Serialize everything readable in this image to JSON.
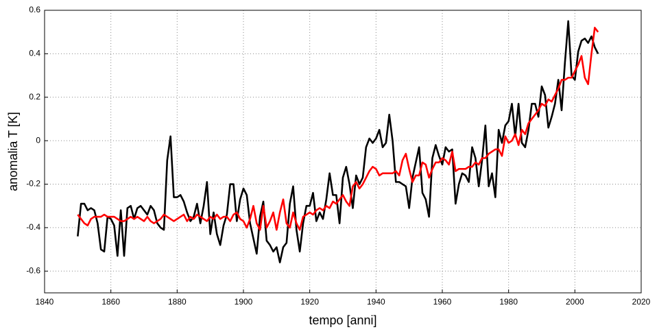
{
  "chart_data": {
    "type": "line",
    "xlabel": "tempo [anni]",
    "ylabel": "anomalia T [K]",
    "x": [
      1850,
      1851,
      1852,
      1853,
      1854,
      1855,
      1856,
      1857,
      1858,
      1859,
      1860,
      1861,
      1862,
      1863,
      1864,
      1865,
      1866,
      1867,
      1868,
      1869,
      1870,
      1871,
      1872,
      1873,
      1874,
      1875,
      1876,
      1877,
      1878,
      1879,
      1880,
      1881,
      1882,
      1883,
      1884,
      1885,
      1886,
      1887,
      1888,
      1889,
      1890,
      1891,
      1892,
      1893,
      1894,
      1895,
      1896,
      1897,
      1898,
      1899,
      1900,
      1901,
      1902,
      1903,
      1904,
      1905,
      1906,
      1907,
      1908,
      1909,
      1910,
      1911,
      1912,
      1913,
      1914,
      1915,
      1916,
      1917,
      1918,
      1919,
      1920,
      1921,
      1922,
      1923,
      1924,
      1925,
      1926,
      1927,
      1928,
      1929,
      1930,
      1931,
      1932,
      1933,
      1934,
      1935,
      1936,
      1937,
      1938,
      1939,
      1940,
      1941,
      1942,
      1943,
      1944,
      1945,
      1946,
      1947,
      1948,
      1949,
      1950,
      1951,
      1952,
      1953,
      1954,
      1955,
      1956,
      1957,
      1958,
      1959,
      1960,
      1961,
      1962,
      1963,
      1964,
      1965,
      1966,
      1967,
      1968,
      1969,
      1970,
      1971,
      1972,
      1973,
      1974,
      1975,
      1976,
      1977,
      1978,
      1979,
      1980,
      1981,
      1982,
      1983,
      1984,
      1985,
      1986,
      1987,
      1988,
      1989,
      1990,
      1991,
      1992,
      1993,
      1994,
      1995,
      1996,
      1997,
      1998,
      1999,
      2000,
      2001,
      2002,
      2003,
      2004,
      2005,
      2006,
      2007
    ],
    "series": [
      {
        "color": "#000000",
        "values": [
          -0.44,
          -0.29,
          -0.29,
          -0.32,
          -0.31,
          -0.32,
          -0.38,
          -0.5,
          -0.51,
          -0.35,
          -0.36,
          -0.39,
          -0.53,
          -0.32,
          -0.53,
          -0.31,
          -0.3,
          -0.36,
          -0.31,
          -0.3,
          -0.32,
          -0.34,
          -0.3,
          -0.32,
          -0.38,
          -0.4,
          -0.41,
          -0.09,
          0.02,
          -0.26,
          -0.26,
          -0.25,
          -0.28,
          -0.33,
          -0.37,
          -0.35,
          -0.29,
          -0.38,
          -0.3,
          -0.19,
          -0.43,
          -0.33,
          -0.43,
          -0.48,
          -0.39,
          -0.34,
          -0.2,
          -0.2,
          -0.37,
          -0.27,
          -0.22,
          -0.25,
          -0.38,
          -0.45,
          -0.52,
          -0.35,
          -0.28,
          -0.46,
          -0.48,
          -0.51,
          -0.49,
          -0.56,
          -0.49,
          -0.47,
          -0.29,
          -0.21,
          -0.41,
          -0.51,
          -0.38,
          -0.3,
          -0.3,
          -0.24,
          -0.37,
          -0.33,
          -0.36,
          -0.27,
          -0.15,
          -0.25,
          -0.25,
          -0.38,
          -0.17,
          -0.12,
          -0.2,
          -0.31,
          -0.16,
          -0.2,
          -0.17,
          -0.03,
          0.01,
          -0.01,
          0.01,
          0.05,
          -0.03,
          -0.01,
          0.12,
          0.0,
          -0.19,
          -0.19,
          -0.2,
          -0.21,
          -0.31,
          -0.17,
          -0.1,
          -0.03,
          -0.24,
          -0.27,
          -0.35,
          -0.08,
          -0.02,
          -0.07,
          -0.11,
          -0.03,
          -0.05,
          -0.04,
          -0.29,
          -0.2,
          -0.15,
          -0.16,
          -0.19,
          -0.03,
          -0.08,
          -0.21,
          -0.09,
          0.07,
          -0.21,
          -0.15,
          -0.26,
          0.05,
          -0.01,
          0.07,
          0.09,
          0.17,
          0.02,
          0.17,
          -0.01,
          -0.03,
          0.05,
          0.17,
          0.17,
          0.11,
          0.25,
          0.21,
          0.06,
          0.11,
          0.17,
          0.28,
          0.14,
          0.36,
          0.55,
          0.3,
          0.28,
          0.41,
          0.46,
          0.47,
          0.45,
          0.48,
          0.43,
          0.4
        ]
      },
      {
        "color": "#ff0000",
        "values": [
          -0.34,
          -0.36,
          -0.38,
          -0.39,
          -0.36,
          -0.35,
          -0.35,
          -0.35,
          -0.34,
          -0.35,
          -0.35,
          -0.35,
          -0.36,
          -0.37,
          -0.37,
          -0.36,
          -0.35,
          -0.36,
          -0.35,
          -0.36,
          -0.37,
          -0.35,
          -0.37,
          -0.38,
          -0.37,
          -0.36,
          -0.34,
          -0.35,
          -0.36,
          -0.37,
          -0.36,
          -0.35,
          -0.34,
          -0.37,
          -0.35,
          -0.36,
          -0.34,
          -0.35,
          -0.36,
          -0.37,
          -0.35,
          -0.36,
          -0.34,
          -0.36,
          -0.35,
          -0.35,
          -0.37,
          -0.34,
          -0.33,
          -0.36,
          -0.37,
          -0.4,
          -0.36,
          -0.3,
          -0.38,
          -0.41,
          -0.3,
          -0.4,
          -0.37,
          -0.33,
          -0.41,
          -0.33,
          -0.27,
          -0.38,
          -0.4,
          -0.33,
          -0.38,
          -0.41,
          -0.35,
          -0.34,
          -0.33,
          -0.34,
          -0.32,
          -0.31,
          -0.32,
          -0.3,
          -0.31,
          -0.28,
          -0.29,
          -0.27,
          -0.25,
          -0.28,
          -0.3,
          -0.21,
          -0.19,
          -0.22,
          -0.2,
          -0.17,
          -0.14,
          -0.12,
          -0.13,
          -0.16,
          -0.15,
          -0.15,
          -0.15,
          -0.15,
          -0.14,
          -0.16,
          -0.09,
          -0.06,
          -0.13,
          -0.19,
          -0.16,
          -0.16,
          -0.1,
          -0.11,
          -0.17,
          -0.13,
          -0.1,
          -0.1,
          -0.08,
          -0.09,
          -0.11,
          -0.05,
          -0.14,
          -0.13,
          -0.13,
          -0.13,
          -0.12,
          -0.12,
          -0.1,
          -0.11,
          -0.08,
          -0.08,
          -0.06,
          -0.05,
          -0.04,
          -0.04,
          -0.07,
          0.02,
          -0.01,
          0.0,
          0.03,
          -0.02,
          0.05,
          0.03,
          0.08,
          0.1,
          0.12,
          0.14,
          0.17,
          0.16,
          0.19,
          0.18,
          0.21,
          0.24,
          0.28,
          0.28,
          0.29,
          0.29,
          0.32,
          0.35,
          0.39,
          0.29,
          0.26,
          0.4,
          0.52,
          0.5
        ]
      }
    ],
    "xlim": [
      1840,
      2020
    ],
    "xticks": [
      1840,
      1860,
      1880,
      1900,
      1920,
      1940,
      1960,
      1980,
      2000,
      2020
    ],
    "ylim": [
      -0.7,
      0.6
    ],
    "yticks": [
      -0.6,
      -0.4,
      -0.2,
      0,
      0.2,
      0.4,
      0.6
    ],
    "grid": true
  }
}
